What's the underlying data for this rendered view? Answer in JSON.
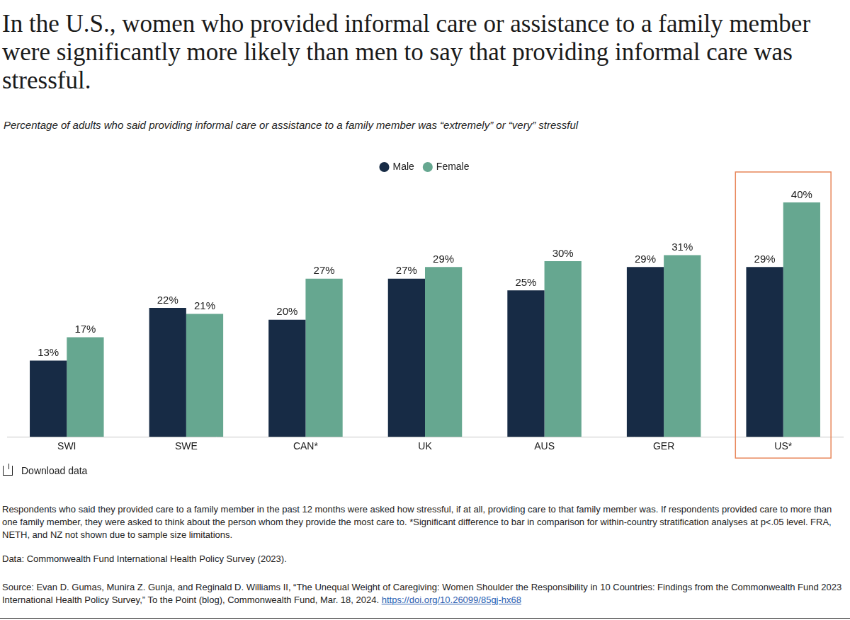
{
  "chart_data": {
    "type": "bar",
    "title": "In the U.S., women who provided informal care or assistance to a family member were significantly more likely than men to say that providing informal care was stressful.",
    "subtitle": "Percentage of adults who said providing informal care or assistance to a family member was “extremely” or “very” stressful",
    "categories": [
      "SWI",
      "SWE",
      "CAN*",
      "UK",
      "AUS",
      "GER",
      "US*"
    ],
    "series": [
      {
        "name": "Male",
        "color": "#172b45",
        "values": [
          13,
          22,
          20,
          27,
          25,
          29,
          29
        ],
        "value_labels": [
          "13%",
          "22%",
          "20%",
          "27%",
          "25%",
          "29%",
          "29%"
        ]
      },
      {
        "name": "Female",
        "color": "#66a790",
        "values": [
          17,
          21,
          27,
          29,
          30,
          31,
          40
        ],
        "value_labels": [
          "17%",
          "21%",
          "27%",
          "29%",
          "30%",
          "31%",
          "40%"
        ]
      }
    ],
    "ylim": [
      0,
      44
    ],
    "grid": false,
    "legend": "top",
    "data_labels": true,
    "tick_labels": "x"
  },
  "page": {
    "download": "Download data",
    "notes": "Respondents who said they provided care to a family member in the past 12 months were asked how stressful, if at all, providing care to that family member was. If respondents provided care to more than one family member, they were asked to think about the person whom they provide the most care to. *Significant difference to bar in comparison for within-country stratification analyses at p<.05 level. FRA, NETH, and NZ not shown due to sample size limitations.",
    "data_source": "Data: Commonwealth Fund International Health Policy Survey (2023).",
    "source": "Source: Evan D. Gumas, Munira Z. Gunja, and Reginald D. Williams II, “The Unequal Weight of Caregiving: Women Shoulder the Responsibility in 10 Countries: Findings from the Commonwealth Fund 2023 International Health Policy Survey,” To the Point (blog), Commonwealth Fund, Mar. 18, 2024.",
    "source_url": "https://doi.org/10.26099/85gj-hx68"
  }
}
